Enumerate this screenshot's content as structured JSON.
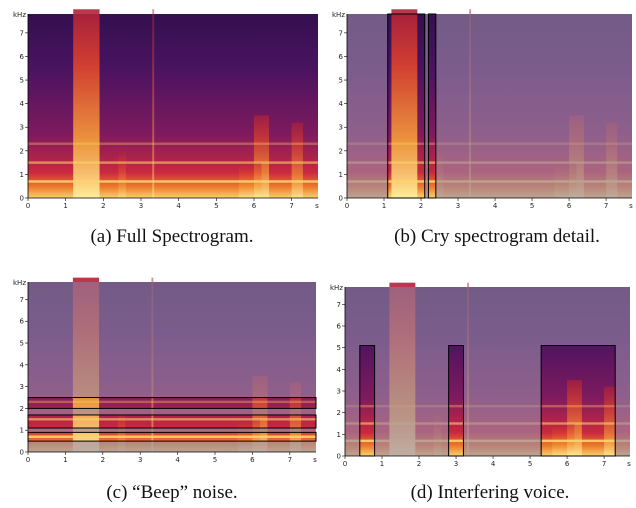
{
  "figures": [
    {
      "caption": "(a) Full Spectrogram.",
      "y_unit": "kHz",
      "y_ticks": [
        "0",
        "1",
        "2",
        "3",
        "4",
        "5",
        "6",
        "7"
      ],
      "x_unit": "s",
      "x_ticks": [
        "0",
        "1",
        "2",
        "3",
        "4",
        "5",
        "6",
        "7"
      ]
    },
    {
      "caption": "(b) Cry spectrogram detail.",
      "y_unit": "kHz",
      "y_ticks": [
        "0",
        "1",
        "2",
        "3",
        "4",
        "5",
        "6",
        "7"
      ],
      "x_unit": "s",
      "x_ticks": [
        "0",
        "1",
        "2",
        "3",
        "4",
        "5",
        "6",
        "7"
      ]
    },
    {
      "caption": "(c) “Beep” noise.",
      "y_unit": "kHz",
      "y_ticks": [
        "0",
        "1",
        "2",
        "3",
        "4",
        "5",
        "6",
        "7"
      ],
      "x_unit": "s",
      "x_ticks": [
        "0",
        "1",
        "2",
        "3",
        "4",
        "5",
        "6",
        "7"
      ]
    },
    {
      "caption": "(d) Interfering voice.",
      "y_unit": "kHz",
      "y_ticks": [
        "0",
        "1",
        "2",
        "3",
        "4",
        "5",
        "6",
        "7"
      ],
      "x_unit": "s",
      "x_ticks": [
        "0",
        "1",
        "2",
        "3",
        "4",
        "5",
        "6",
        "7"
      ]
    }
  ]
}
